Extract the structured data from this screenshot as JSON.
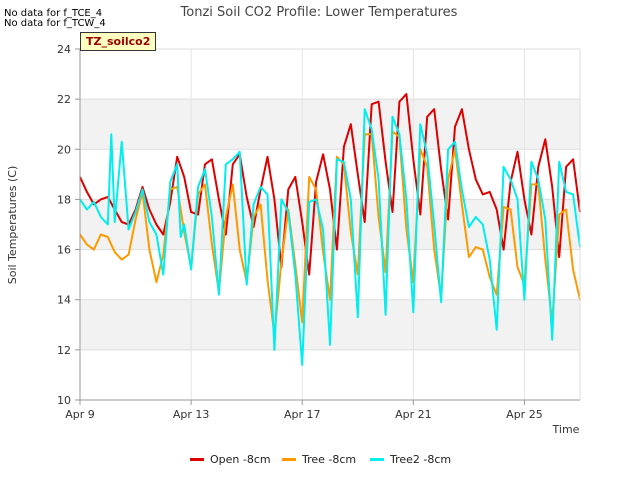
{
  "notes": [
    "No data for f_TCE_4",
    "No data for f_TCW_4"
  ],
  "badge": "TZ_soilco2",
  "chart_data": {
    "type": "line",
    "title": "Tonzi Soil CO2 Profile: Lower Temperatures",
    "xlabel": "Time",
    "ylabel": "Soil Temperatures (C)",
    "ylim": [
      10,
      24
    ],
    "yticks": [
      10,
      12,
      14,
      16,
      18,
      20,
      22,
      24
    ],
    "xlim": [
      "2024-04-09",
      "2024-04-27"
    ],
    "xticks": [
      {
        "label": "Apr 9",
        "date": "2024-04-09"
      },
      {
        "label": "Apr 13",
        "date": "2024-04-13"
      },
      {
        "label": "Apr 17",
        "date": "2024-04-17"
      },
      {
        "label": "Apr 21",
        "date": "2024-04-21"
      },
      {
        "label": "Apr 25",
        "date": "2024-04-25"
      }
    ],
    "grid": true,
    "legend_position": "bottom",
    "series": [
      {
        "name": "Open -8cm",
        "color": "#dd0000",
        "points": [
          [
            "2024-04-09T00:00",
            18.9
          ],
          [
            "2024-04-09T06:00",
            18.3
          ],
          [
            "2024-04-09T12:00",
            17.8
          ],
          [
            "2024-04-09T18:00",
            18.0
          ],
          [
            "2024-04-10T00:00",
            18.1
          ],
          [
            "2024-04-10T06:00",
            17.6
          ],
          [
            "2024-04-10T12:00",
            17.1
          ],
          [
            "2024-04-10T18:00",
            17.0
          ],
          [
            "2024-04-11T00:00",
            17.6
          ],
          [
            "2024-04-11T06:00",
            18.5
          ],
          [
            "2024-04-11T12:00",
            17.6
          ],
          [
            "2024-04-11T18:00",
            17.0
          ],
          [
            "2024-04-12T00:00",
            16.6
          ],
          [
            "2024-04-12T06:00",
            17.9
          ],
          [
            "2024-04-12T12:00",
            19.7
          ],
          [
            "2024-04-12T18:00",
            18.9
          ],
          [
            "2024-04-13T00:00",
            17.5
          ],
          [
            "2024-04-13T06:00",
            17.4
          ],
          [
            "2024-04-13T12:00",
            19.4
          ],
          [
            "2024-04-13T18:00",
            19.6
          ],
          [
            "2024-04-14T00:00",
            18.0
          ],
          [
            "2024-04-14T06:00",
            16.6
          ],
          [
            "2024-04-14T12:00",
            19.4
          ],
          [
            "2024-04-14T18:00",
            19.8
          ],
          [
            "2024-04-15T00:00",
            18.1
          ],
          [
            "2024-04-15T06:00",
            16.9
          ],
          [
            "2024-04-15T12:00",
            18.4
          ],
          [
            "2024-04-15T18:00",
            19.7
          ],
          [
            "2024-04-16T00:00",
            18.0
          ],
          [
            "2024-04-16T06:00",
            15.3
          ],
          [
            "2024-04-16T12:00",
            18.4
          ],
          [
            "2024-04-16T18:00",
            18.9
          ],
          [
            "2024-04-17T00:00",
            17.1
          ],
          [
            "2024-04-17T06:00",
            15.0
          ],
          [
            "2024-04-17T12:00",
            18.7
          ],
          [
            "2024-04-17T18:00",
            19.8
          ],
          [
            "2024-04-18T00:00",
            18.4
          ],
          [
            "2024-04-18T06:00",
            16.0
          ],
          [
            "2024-04-18T12:00",
            20.1
          ],
          [
            "2024-04-18T18:00",
            21.0
          ],
          [
            "2024-04-19T00:00",
            19.0
          ],
          [
            "2024-04-19T06:00",
            17.1
          ],
          [
            "2024-04-19T12:00",
            21.8
          ],
          [
            "2024-04-19T18:00",
            21.9
          ],
          [
            "2024-04-20T00:00",
            19.5
          ],
          [
            "2024-04-20T06:00",
            17.5
          ],
          [
            "2024-04-20T12:00",
            21.9
          ],
          [
            "2024-04-20T18:00",
            22.2
          ],
          [
            "2024-04-21T00:00",
            19.6
          ],
          [
            "2024-04-21T06:00",
            17.4
          ],
          [
            "2024-04-21T12:00",
            21.3
          ],
          [
            "2024-04-21T18:00",
            21.6
          ],
          [
            "2024-04-22T00:00",
            19.2
          ],
          [
            "2024-04-22T06:00",
            17.2
          ],
          [
            "2024-04-22T12:00",
            20.9
          ],
          [
            "2024-04-22T18:00",
            21.6
          ],
          [
            "2024-04-23T00:00",
            20.0
          ],
          [
            "2024-04-23T06:00",
            18.8
          ],
          [
            "2024-04-23T12:00",
            18.2
          ],
          [
            "2024-04-23T18:00",
            18.3
          ],
          [
            "2024-04-24T00:00",
            17.6
          ],
          [
            "2024-04-24T06:00",
            16.0
          ],
          [
            "2024-04-24T12:00",
            18.7
          ],
          [
            "2024-04-24T18:00",
            19.9
          ],
          [
            "2024-04-25T00:00",
            18.0
          ],
          [
            "2024-04-25T06:00",
            16.6
          ],
          [
            "2024-04-25T12:00",
            19.3
          ],
          [
            "2024-04-25T18:00",
            20.4
          ],
          [
            "2024-04-26T00:00",
            18.5
          ],
          [
            "2024-04-26T06:00",
            15.7
          ],
          [
            "2024-04-26T12:00",
            19.3
          ],
          [
            "2024-04-26T18:00",
            19.6
          ],
          [
            "2024-04-27T00:00",
            17.5
          ]
        ]
      },
      {
        "name": "Tree -8cm",
        "color": "#ff9900",
        "points": [
          [
            "2024-04-09T00:00",
            16.6
          ],
          [
            "2024-04-09T06:00",
            16.2
          ],
          [
            "2024-04-09T12:00",
            16.0
          ],
          [
            "2024-04-09T18:00",
            16.6
          ],
          [
            "2024-04-10T00:00",
            16.5
          ],
          [
            "2024-04-10T06:00",
            15.9
          ],
          [
            "2024-04-10T12:00",
            15.6
          ],
          [
            "2024-04-10T18:00",
            15.8
          ],
          [
            "2024-04-11T00:00",
            17.2
          ],
          [
            "2024-04-11T06:00",
            18.3
          ],
          [
            "2024-04-11T12:00",
            16.0
          ],
          [
            "2024-04-11T18:00",
            14.7
          ],
          [
            "2024-04-12T00:00",
            15.8
          ],
          [
            "2024-04-12T06:00",
            18.4
          ],
          [
            "2024-04-12T12:00",
            18.5
          ],
          [
            "2024-04-12T18:00",
            16.7
          ],
          [
            "2024-04-13T00:00",
            15.3
          ],
          [
            "2024-04-13T06:00",
            18.2
          ],
          [
            "2024-04-13T12:00",
            18.6
          ],
          [
            "2024-04-13T18:00",
            16.2
          ],
          [
            "2024-04-14T00:00",
            14.3
          ],
          [
            "2024-04-14T06:00",
            17.3
          ],
          [
            "2024-04-14T12:00",
            18.6
          ],
          [
            "2024-04-14T18:00",
            16.0
          ],
          [
            "2024-04-15T00:00",
            14.7
          ],
          [
            "2024-04-15T06:00",
            17.3
          ],
          [
            "2024-04-15T12:00",
            17.8
          ],
          [
            "2024-04-15T18:00",
            14.8
          ],
          [
            "2024-04-16T00:00",
            12.6
          ],
          [
            "2024-04-16T06:00",
            15.5
          ],
          [
            "2024-04-16T12:00",
            17.6
          ],
          [
            "2024-04-16T18:00",
            15.4
          ],
          [
            "2024-04-17T00:00",
            13.1
          ],
          [
            "2024-04-17T06:00",
            18.9
          ],
          [
            "2024-04-17T12:00",
            18.4
          ],
          [
            "2024-04-17T18:00",
            15.9
          ],
          [
            "2024-04-18T00:00",
            14.0
          ],
          [
            "2024-04-18T06:00",
            19.7
          ],
          [
            "2024-04-18T12:00",
            19.4
          ],
          [
            "2024-04-18T18:00",
            16.7
          ],
          [
            "2024-04-19T00:00",
            15.0
          ],
          [
            "2024-04-19T06:00",
            20.6
          ],
          [
            "2024-04-19T12:00",
            20.6
          ],
          [
            "2024-04-19T18:00",
            17.3
          ],
          [
            "2024-04-20T00:00",
            15.1
          ],
          [
            "2024-04-20T06:00",
            20.7
          ],
          [
            "2024-04-20T12:00",
            20.5
          ],
          [
            "2024-04-20T18:00",
            16.8
          ],
          [
            "2024-04-21T00:00",
            14.7
          ],
          [
            "2024-04-21T06:00",
            20.0
          ],
          [
            "2024-04-21T12:00",
            19.3
          ],
          [
            "2024-04-21T18:00",
            16.0
          ],
          [
            "2024-04-22T00:00",
            14.1
          ],
          [
            "2024-04-22T06:00",
            18.8
          ],
          [
            "2024-04-22T12:00",
            20.0
          ],
          [
            "2024-04-22T18:00",
            17.8
          ],
          [
            "2024-04-23T00:00",
            15.7
          ],
          [
            "2024-04-23T06:00",
            16.1
          ],
          [
            "2024-04-23T12:00",
            16.0
          ],
          [
            "2024-04-23T18:00",
            14.9
          ],
          [
            "2024-04-24T00:00",
            14.2
          ],
          [
            "2024-04-24T06:00",
            17.7
          ],
          [
            "2024-04-24T12:00",
            17.6
          ],
          [
            "2024-04-24T18:00",
            15.3
          ],
          [
            "2024-04-25T00:00",
            14.6
          ],
          [
            "2024-04-25T06:00",
            18.6
          ],
          [
            "2024-04-25T12:00",
            18.6
          ],
          [
            "2024-04-25T18:00",
            15.6
          ],
          [
            "2024-04-26T00:00",
            13.1
          ],
          [
            "2024-04-26T06:00",
            17.4
          ],
          [
            "2024-04-26T12:00",
            17.6
          ],
          [
            "2024-04-26T18:00",
            15.2
          ],
          [
            "2024-04-27T00:00",
            14.0
          ]
        ]
      },
      {
        "name": "Tree2 -8cm",
        "color": "#00eeee",
        "points": [
          [
            "2024-04-09T00:00",
            18.0
          ],
          [
            "2024-04-09T06:00",
            17.6
          ],
          [
            "2024-04-09T12:00",
            17.9
          ],
          [
            "2024-04-09T18:00",
            17.3
          ],
          [
            "2024-04-10T00:00",
            17.0
          ],
          [
            "2024-04-10T03:00",
            20.6
          ],
          [
            "2024-04-10T06:00",
            17.1
          ],
          [
            "2024-04-10T12:00",
            20.3
          ],
          [
            "2024-04-10T18:00",
            16.8
          ],
          [
            "2024-04-11T00:00",
            17.5
          ],
          [
            "2024-04-11T06:00",
            18.4
          ],
          [
            "2024-04-11T12:00",
            17.1
          ],
          [
            "2024-04-11T18:00",
            16.6
          ],
          [
            "2024-04-12T00:00",
            15.0
          ],
          [
            "2024-04-12T06:00",
            18.7
          ],
          [
            "2024-04-12T12:00",
            19.4
          ],
          [
            "2024-04-12T15:00",
            16.5
          ],
          [
            "2024-04-12T18:00",
            17.0
          ],
          [
            "2024-04-13T00:00",
            15.2
          ],
          [
            "2024-04-13T06:00",
            18.5
          ],
          [
            "2024-04-13T12:00",
            19.2
          ],
          [
            "2024-04-13T18:00",
            17.3
          ],
          [
            "2024-04-14T00:00",
            14.2
          ],
          [
            "2024-04-14T06:00",
            19.4
          ],
          [
            "2024-04-14T12:00",
            19.6
          ],
          [
            "2024-04-14T18:00",
            19.9
          ],
          [
            "2024-04-15T00:00",
            14.6
          ],
          [
            "2024-04-15T06:00",
            17.8
          ],
          [
            "2024-04-15T12:00",
            18.5
          ],
          [
            "2024-04-15T18:00",
            18.2
          ],
          [
            "2024-04-16T00:00",
            12.0
          ],
          [
            "2024-04-16T06:00",
            18.0
          ],
          [
            "2024-04-16T12:00",
            17.5
          ],
          [
            "2024-04-16T18:00",
            15.0
          ],
          [
            "2024-04-17T00:00",
            11.4
          ],
          [
            "2024-04-17T06:00",
            17.9
          ],
          [
            "2024-04-17T12:00",
            18.0
          ],
          [
            "2024-04-17T18:00",
            16.8
          ],
          [
            "2024-04-18T00:00",
            12.2
          ],
          [
            "2024-04-18T06:00",
            19.6
          ],
          [
            "2024-04-18T12:00",
            19.5
          ],
          [
            "2024-04-18T18:00",
            18.0
          ],
          [
            "2024-04-19T00:00",
            13.3
          ],
          [
            "2024-04-19T06:00",
            21.6
          ],
          [
            "2024-04-19T12:00",
            20.8
          ],
          [
            "2024-04-19T18:00",
            18.8
          ],
          [
            "2024-04-20T00:00",
            13.4
          ],
          [
            "2024-04-20T06:00",
            21.3
          ],
          [
            "2024-04-20T12:00",
            20.6
          ],
          [
            "2024-04-20T18:00",
            18.0
          ],
          [
            "2024-04-21T00:00",
            13.5
          ],
          [
            "2024-04-21T06:00",
            21.0
          ],
          [
            "2024-04-21T12:00",
            19.8
          ],
          [
            "2024-04-21T18:00",
            17.0
          ],
          [
            "2024-04-22T00:00",
            13.9
          ],
          [
            "2024-04-22T06:00",
            20.0
          ],
          [
            "2024-04-22T12:00",
            20.3
          ],
          [
            "2024-04-22T18:00",
            18.4
          ],
          [
            "2024-04-23T00:00",
            16.9
          ],
          [
            "2024-04-23T06:00",
            17.3
          ],
          [
            "2024-04-23T12:00",
            17.0
          ],
          [
            "2024-04-23T18:00",
            15.6
          ],
          [
            "2024-04-24T00:00",
            12.8
          ],
          [
            "2024-04-24T06:00",
            19.3
          ],
          [
            "2024-04-24T12:00",
            18.8
          ],
          [
            "2024-04-24T18:00",
            18.0
          ],
          [
            "2024-04-25T00:00",
            14.0
          ],
          [
            "2024-04-25T06:00",
            19.5
          ],
          [
            "2024-04-25T12:00",
            18.8
          ],
          [
            "2024-04-25T18:00",
            17.2
          ],
          [
            "2024-04-26T00:00",
            12.4
          ],
          [
            "2024-04-26T06:00",
            19.5
          ],
          [
            "2024-04-26T12:00",
            18.3
          ],
          [
            "2024-04-26T18:00",
            18.2
          ],
          [
            "2024-04-27T00:00",
            16.1
          ]
        ]
      }
    ]
  }
}
